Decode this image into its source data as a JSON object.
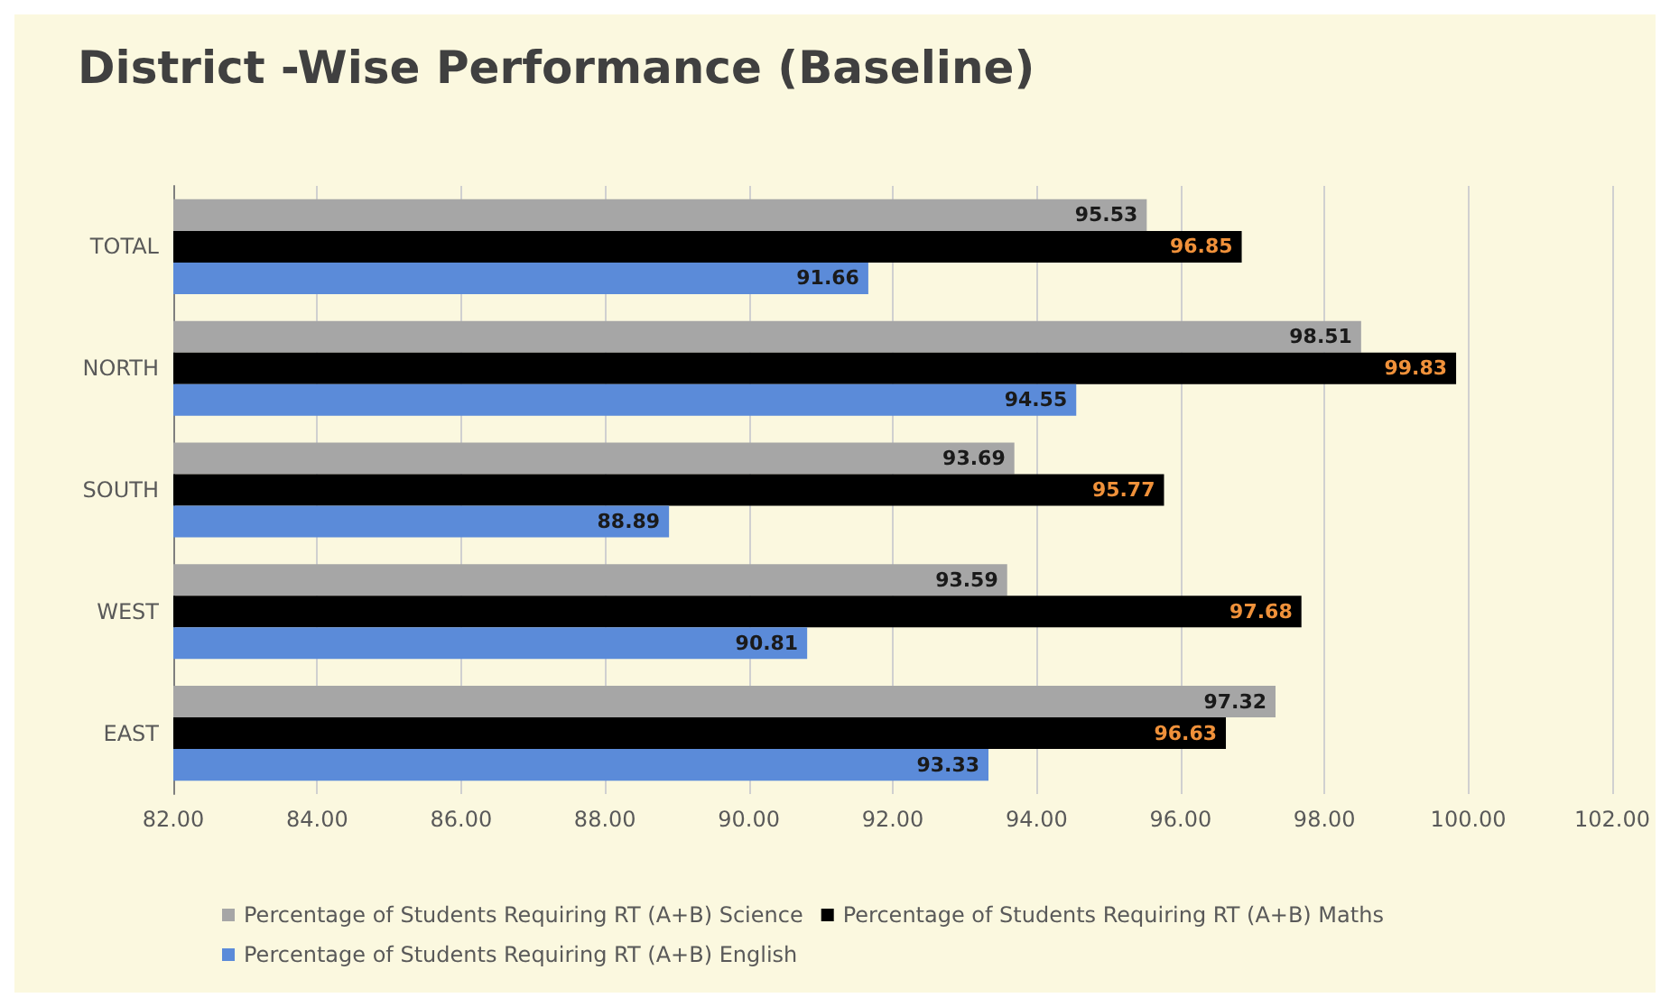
{
  "chart_data": {
    "type": "bar",
    "orientation": "horizontal",
    "title": "District -Wise Performance (Baseline)",
    "categories": [
      "TOTAL",
      "NORTH",
      "SOUTH",
      "WEST",
      "EAST"
    ],
    "series": [
      {
        "name": "Percentage of Students Requiring RT (A+B) Science",
        "color": "#a6a6a6",
        "values": [
          95.53,
          98.51,
          93.69,
          93.59,
          97.32
        ]
      },
      {
        "name": "Percentage of Students Requiring RT (A+B) Maths",
        "color": "#000000",
        "values": [
          96.85,
          99.83,
          95.77,
          97.68,
          96.63
        ]
      },
      {
        "name": "Percentage of Students Requiring RT (A+B) English",
        "color": "#5b8bd9",
        "values": [
          91.66,
          94.55,
          88.89,
          90.81,
          93.33
        ]
      }
    ],
    "xlim": [
      82,
      102
    ],
    "xticks": [
      {
        "value": 82,
        "label": "82.00"
      },
      {
        "value": 84,
        "label": "84.00"
      },
      {
        "value": 86,
        "label": "86.00"
      },
      {
        "value": 88,
        "label": "88.00"
      },
      {
        "value": 90,
        "label": "90.00"
      },
      {
        "value": 92,
        "label": "92.00"
      },
      {
        "value": 94,
        "label": "94.00"
      },
      {
        "value": 96,
        "label": "96.00"
      },
      {
        "value": 98,
        "label": "98.00"
      },
      {
        "value": 100,
        "label": "100.00"
      },
      {
        "value": 102,
        "label": "102.00"
      }
    ],
    "grid": "x",
    "legend": "bottom",
    "data_labels": true
  }
}
